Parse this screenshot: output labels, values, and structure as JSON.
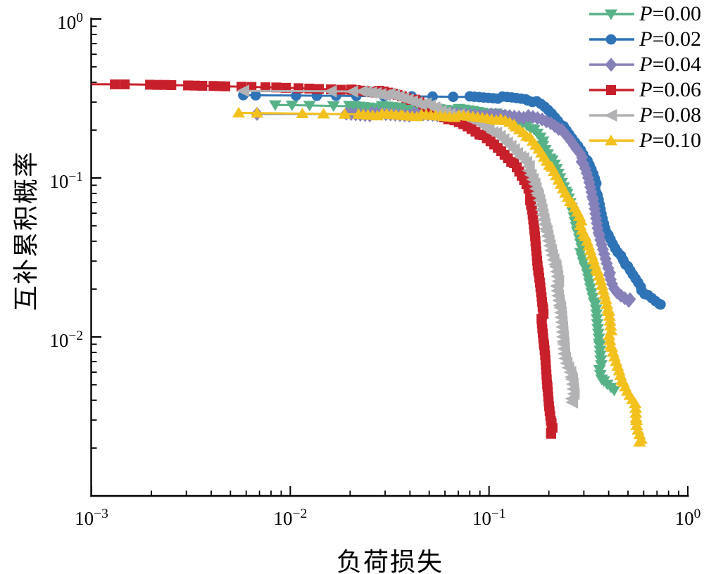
{
  "chart_data": {
    "type": "line",
    "title": "",
    "xlabel": "负荷损失",
    "ylabel": "互补累积概率",
    "x_scale": "log",
    "y_scale": "log",
    "xlim": [
      0.001,
      1
    ],
    "ylim": [
      0.001,
      1
    ],
    "grid": false,
    "legend_position": "top-right",
    "x_tick_exponents": [
      -3,
      -2,
      -1,
      0
    ],
    "y_tick_exponents": [
      0,
      -1,
      -2
    ],
    "series": [
      {
        "label": "P=0.00",
        "color": "#57b287",
        "marker": "triangle-down",
        "sparse_points": [
          [
            0.0084,
            0.288
          ],
          [
            0.0102,
            0.287
          ],
          [
            0.0125,
            0.286
          ],
          [
            0.0165,
            0.284
          ]
        ],
        "curve_points": [
          [
            0.02,
            0.283
          ],
          [
            0.028,
            0.28
          ],
          [
            0.04,
            0.277
          ],
          [
            0.055,
            0.273
          ],
          [
            0.07,
            0.27
          ],
          [
            0.085,
            0.264
          ],
          [
            0.1,
            0.257
          ],
          [
            0.12,
            0.245
          ],
          [
            0.14,
            0.23
          ],
          [
            0.154,
            0.217
          ],
          [
            0.17,
            0.195
          ],
          [
            0.186,
            0.168
          ],
          [
            0.2,
            0.143
          ],
          [
            0.218,
            0.118
          ],
          [
            0.23,
            0.098
          ],
          [
            0.243,
            0.084
          ],
          [
            0.255,
            0.07
          ],
          [
            0.262,
            0.062
          ],
          [
            0.272,
            0.05
          ],
          [
            0.285,
            0.0384
          ],
          [
            0.3,
            0.0305
          ],
          [
            0.312,
            0.0262
          ],
          [
            0.326,
            0.0202
          ],
          [
            0.338,
            0.0168
          ],
          [
            0.345,
            0.0149
          ],
          [
            0.35,
            0.0115
          ],
          [
            0.354,
            0.0099
          ],
          [
            0.359,
            0.0075
          ],
          [
            0.362,
            0.0066
          ],
          [
            0.37,
            0.0056
          ],
          [
            0.385,
            0.0051
          ],
          [
            0.405,
            0.0049
          ],
          [
            0.429,
            0.0046
          ]
        ]
      },
      {
        "label": "P=0.02",
        "color": "#2e73b5",
        "marker": "circle",
        "sparse_points": [
          [
            0.0058,
            0.332
          ],
          [
            0.0067,
            0.331
          ],
          [
            0.0107,
            0.33
          ],
          [
            0.0136,
            0.329
          ],
          [
            0.017,
            0.329
          ],
          [
            0.0215,
            0.328
          ],
          [
            0.0296,
            0.327
          ],
          [
            0.0408,
            0.326
          ],
          [
            0.052,
            0.325
          ],
          [
            0.066,
            0.324
          ]
        ],
        "curve_points": [
          [
            0.08,
            0.323
          ],
          [
            0.095,
            0.322
          ],
          [
            0.11,
            0.321
          ],
          [
            0.13,
            0.319
          ],
          [
            0.15,
            0.315
          ],
          [
            0.165,
            0.308
          ],
          [
            0.18,
            0.295
          ],
          [
            0.195,
            0.275
          ],
          [
            0.21,
            0.252
          ],
          [
            0.225,
            0.228
          ],
          [
            0.24,
            0.205
          ],
          [
            0.256,
            0.183
          ],
          [
            0.27,
            0.168
          ],
          [
            0.285,
            0.155
          ],
          [
            0.3,
            0.138
          ],
          [
            0.315,
            0.122
          ],
          [
            0.33,
            0.107
          ],
          [
            0.345,
            0.09
          ],
          [
            0.36,
            0.072
          ],
          [
            0.372,
            0.058
          ],
          [
            0.385,
            0.049
          ],
          [
            0.4,
            0.043
          ],
          [
            0.42,
            0.038
          ],
          [
            0.44,
            0.0345
          ],
          [
            0.46,
            0.0326
          ],
          [
            0.49,
            0.028
          ],
          [
            0.52,
            0.0248
          ],
          [
            0.55,
            0.0225
          ],
          [
            0.578,
            0.0204
          ],
          [
            0.6,
            0.0196
          ],
          [
            0.625,
            0.0184
          ],
          [
            0.65,
            0.0177
          ],
          [
            0.69,
            0.0168
          ],
          [
            0.71,
            0.0162
          ],
          [
            0.735,
            0.016
          ]
        ]
      },
      {
        "label": "P=0.04",
        "color": "#8781b9",
        "marker": "diamond",
        "sparse_points": [
          [
            0.0068,
            0.253
          ]
        ],
        "curve_points": [
          [
            0.019,
            0.252
          ],
          [
            0.028,
            0.251
          ],
          [
            0.04,
            0.251
          ],
          [
            0.055,
            0.25
          ],
          [
            0.07,
            0.25
          ],
          [
            0.085,
            0.249
          ],
          [
            0.105,
            0.248
          ],
          [
            0.125,
            0.246
          ],
          [
            0.145,
            0.244
          ],
          [
            0.165,
            0.24
          ],
          [
            0.185,
            0.233
          ],
          [
            0.205,
            0.222
          ],
          [
            0.222,
            0.208
          ],
          [
            0.237,
            0.19
          ],
          [
            0.252,
            0.175
          ],
          [
            0.27,
            0.155
          ],
          [
            0.285,
            0.143
          ],
          [
            0.298,
            0.127
          ],
          [
            0.31,
            0.112
          ],
          [
            0.32,
            0.098
          ],
          [
            0.33,
            0.082
          ],
          [
            0.34,
            0.065
          ],
          [
            0.35,
            0.0495
          ],
          [
            0.36,
            0.0405
          ],
          [
            0.375,
            0.0336
          ],
          [
            0.39,
            0.028
          ],
          [
            0.405,
            0.0248
          ],
          [
            0.42,
            0.0215
          ],
          [
            0.435,
            0.0196
          ],
          [
            0.455,
            0.0186
          ],
          [
            0.477,
            0.018
          ],
          [
            0.495,
            0.0174
          ],
          [
            0.514,
            0.017
          ]
        ]
      },
      {
        "label": "P=0.06",
        "color": "#c8202a",
        "marker": "square",
        "line_start": [
          0.001,
          0.389
        ],
        "sparse_points": [
          [
            0.00131,
            0.388
          ],
          [
            0.00147,
            0.388
          ],
          [
            0.00197,
            0.386
          ],
          [
            0.00214,
            0.385
          ],
          [
            0.00232,
            0.385
          ],
          [
            0.00252,
            0.384
          ],
          [
            0.00306,
            0.382
          ],
          [
            0.00332,
            0.381
          ],
          [
            0.00361,
            0.38
          ],
          [
            0.00411,
            0.379
          ],
          [
            0.00442,
            0.378
          ],
          [
            0.00471,
            0.377
          ],
          [
            0.00568,
            0.375
          ],
          [
            0.00638,
            0.374
          ],
          [
            0.0075,
            0.372
          ],
          [
            0.0085,
            0.371
          ],
          [
            0.00952,
            0.369
          ],
          [
            0.011,
            0.367
          ],
          [
            0.01246,
            0.365
          ],
          [
            0.01394,
            0.363
          ],
          [
            0.01602,
            0.361
          ],
          [
            0.01795,
            0.359
          ],
          [
            0.02043,
            0.358
          ]
        ],
        "curve_points": [
          [
            0.0205,
            0.358
          ],
          [
            0.025,
            0.353
          ],
          [
            0.03,
            0.345
          ],
          [
            0.035,
            0.333
          ],
          [
            0.04,
            0.316
          ],
          [
            0.045,
            0.295
          ],
          [
            0.05,
            0.272
          ],
          [
            0.056,
            0.25
          ],
          [
            0.063,
            0.235
          ],
          [
            0.07,
            0.225
          ],
          [
            0.077,
            0.215
          ],
          [
            0.085,
            0.2
          ],
          [
            0.093,
            0.185
          ],
          [
            0.1,
            0.172
          ],
          [
            0.107,
            0.161
          ],
          [
            0.114,
            0.15
          ],
          [
            0.122,
            0.138
          ],
          [
            0.131,
            0.126
          ],
          [
            0.138,
            0.114
          ],
          [
            0.145,
            0.103
          ],
          [
            0.152,
            0.093
          ],
          [
            0.158,
            0.084
          ],
          [
            0.163,
            0.072
          ],
          [
            0.167,
            0.062
          ],
          [
            0.17,
            0.049
          ],
          [
            0.173,
            0.0355
          ],
          [
            0.175,
            0.029
          ],
          [
            0.178,
            0.0235
          ],
          [
            0.182,
            0.018
          ],
          [
            0.185,
            0.0143
          ],
          [
            0.187,
            0.0118
          ],
          [
            0.19,
            0.0092
          ],
          [
            0.1925,
            0.0075
          ],
          [
            0.194,
            0.0061
          ],
          [
            0.196,
            0.0048
          ],
          [
            0.198,
            0.0039
          ],
          [
            0.199,
            0.0036
          ],
          [
            0.203,
            0.0029
          ],
          [
            0.208,
            0.00245
          ]
        ]
      },
      {
        "label": "P=0.08",
        "color": "#b2b2b4",
        "marker": "triangle-left",
        "sparse_points": [
          [
            0.0058,
            0.353
          ],
          [
            0.016,
            0.351
          ],
          [
            0.0205,
            0.35
          ]
        ],
        "curve_points": [
          [
            0.023,
            0.349
          ],
          [
            0.027,
            0.344
          ],
          [
            0.031,
            0.335
          ],
          [
            0.036,
            0.32
          ],
          [
            0.041,
            0.305
          ],
          [
            0.047,
            0.29
          ],
          [
            0.053,
            0.274
          ],
          [
            0.06,
            0.26
          ],
          [
            0.067,
            0.25
          ],
          [
            0.0735,
            0.243
          ],
          [
            0.082,
            0.232
          ],
          [
            0.091,
            0.22
          ],
          [
            0.101,
            0.202
          ],
          [
            0.111,
            0.185
          ],
          [
            0.122,
            0.167
          ],
          [
            0.134,
            0.15
          ],
          [
            0.144,
            0.135
          ],
          [
            0.154,
            0.122
          ],
          [
            0.163,
            0.107
          ],
          [
            0.171,
            0.093
          ],
          [
            0.177,
            0.078
          ],
          [
            0.182,
            0.068
          ],
          [
            0.187,
            0.058
          ],
          [
            0.192,
            0.049
          ],
          [
            0.198,
            0.0405
          ],
          [
            0.205,
            0.0336
          ],
          [
            0.212,
            0.029
          ],
          [
            0.218,
            0.0235
          ],
          [
            0.223,
            0.0196
          ],
          [
            0.23,
            0.0149
          ],
          [
            0.234,
            0.0115
          ],
          [
            0.237,
            0.0085
          ],
          [
            0.2385,
            0.0075
          ],
          [
            0.246,
            0.0066
          ],
          [
            0.255,
            0.006
          ],
          [
            0.259,
            0.0052
          ],
          [
            0.262,
            0.0045
          ],
          [
            0.265,
            0.0039
          ]
        ]
      },
      {
        "label": "P=0.10",
        "color": "#f2c11e",
        "marker": "triangle-up",
        "sparse_points": [
          [
            0.0055,
            0.257
          ],
          [
            0.0068,
            0.256
          ],
          [
            0.0115,
            0.254
          ],
          [
            0.0147,
            0.253
          ],
          [
            0.0188,
            0.252
          ]
        ],
        "curve_points": [
          [
            0.022,
            0.251
          ],
          [
            0.03,
            0.249
          ],
          [
            0.04,
            0.248
          ],
          [
            0.055,
            0.246
          ],
          [
            0.07,
            0.244
          ],
          [
            0.085,
            0.242
          ],
          [
            0.0985,
            0.239
          ],
          [
            0.11,
            0.234
          ],
          [
            0.122,
            0.226
          ],
          [
            0.136,
            0.213
          ],
          [
            0.15,
            0.196
          ],
          [
            0.162,
            0.178
          ],
          [
            0.171,
            0.163
          ],
          [
            0.182,
            0.148
          ],
          [
            0.195,
            0.13
          ],
          [
            0.207,
            0.115
          ],
          [
            0.22,
            0.1
          ],
          [
            0.234,
            0.0865
          ],
          [
            0.25,
            0.075
          ],
          [
            0.265,
            0.066
          ],
          [
            0.28,
            0.058
          ],
          [
            0.295,
            0.049
          ],
          [
            0.31,
            0.0415
          ],
          [
            0.325,
            0.035
          ],
          [
            0.34,
            0.0295
          ],
          [
            0.355,
            0.0248
          ],
          [
            0.37,
            0.0208
          ],
          [
            0.385,
            0.0172
          ],
          [
            0.395,
            0.0149
          ],
          [
            0.402,
            0.0122
          ],
          [
            0.408,
            0.0103
          ],
          [
            0.413,
            0.0092
          ],
          [
            0.42,
            0.0083
          ],
          [
            0.429,
            0.0076
          ],
          [
            0.44,
            0.0069
          ],
          [
            0.453,
            0.0062
          ],
          [
            0.465,
            0.0055
          ],
          [
            0.48,
            0.0049
          ],
          [
            0.5,
            0.0044
          ],
          [
            0.52,
            0.0041
          ],
          [
            0.543,
            0.0038
          ],
          [
            0.545,
            0.0031
          ],
          [
            0.548,
            0.0027
          ],
          [
            0.56,
            0.0025
          ],
          [
            0.58,
            0.0022
          ]
        ]
      }
    ]
  }
}
